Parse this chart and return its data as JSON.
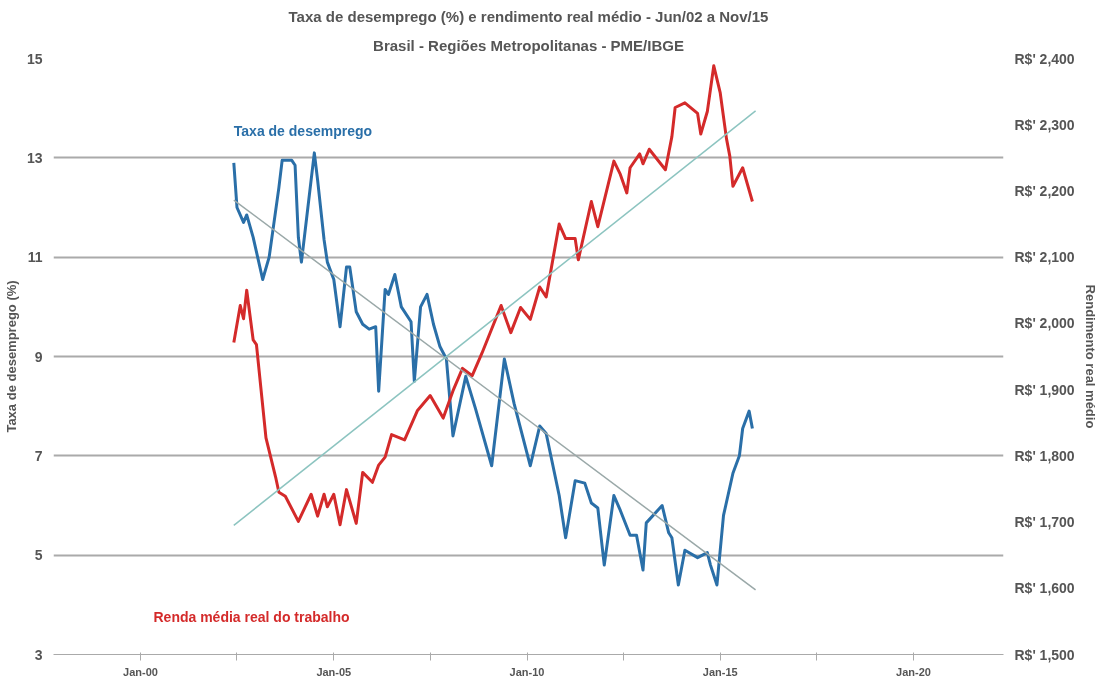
{
  "chart_data": {
    "type": "line",
    "title": "Taxa de desemprego (%) e rendimento real médio - Jun/02 a Nov/15",
    "subtitle": "Brasil - Regiões Metropolitanas - PME/IBGE",
    "ylabel": "Taxa de desemprego (%)",
    "y2label": "Rendimento real médio",
    "xlim": [
      "1997-10",
      "2022-05"
    ],
    "xticks": [
      {
        "value": "2000-01",
        "label": "Jan-00"
      },
      {
        "value": "2002-07",
        "label": null
      },
      {
        "value": "2005-01",
        "label": "Jan-05"
      },
      {
        "value": "2007-07",
        "label": null
      },
      {
        "value": "2010-01",
        "label": "Jan-10"
      },
      {
        "value": "2012-07",
        "label": null
      },
      {
        "value": "2015-01",
        "label": "Jan-15"
      },
      {
        "value": "2017-07",
        "label": null
      },
      {
        "value": "2020-01",
        "label": "Jan-20"
      }
    ],
    "ylim": [
      3,
      15
    ],
    "yticks": [
      3,
      5,
      7,
      9,
      11,
      13,
      15
    ],
    "y2lim": [
      1500,
      2400
    ],
    "y2ticks": [
      {
        "value": 1500,
        "label": "R$' 1,500"
      },
      {
        "value": 1600,
        "label": "R$' 1,600"
      },
      {
        "value": 1700,
        "label": "R$' 1,700"
      },
      {
        "value": 1800,
        "label": "R$' 1,800"
      },
      {
        "value": 1900,
        "label": "R$' 1,900"
      },
      {
        "value": 2000,
        "label": "R$' 2,000"
      },
      {
        "value": 2100,
        "label": "R$' 2,100"
      },
      {
        "value": 2200,
        "label": "R$' 2,200"
      },
      {
        "value": 2300,
        "label": "R$' 2,300"
      },
      {
        "value": 2400,
        "label": "R$' 2,400"
      }
    ],
    "grid": "y",
    "line_style": "solid",
    "series": [
      {
        "name": "Taxa de desemprego",
        "color": "#2a6fa8",
        "x": [
          "2002-06",
          "2002-07",
          "2002-09",
          "2002-10",
          "2002-12",
          "2003-03",
          "2003-05",
          "2003-08",
          "2003-09",
          "2003-12",
          "2004-01",
          "2004-02",
          "2004-03",
          "2004-05",
          "2004-07",
          "2004-08",
          "2004-10",
          "2004-11",
          "2005-01",
          "2005-03",
          "2005-05",
          "2005-06",
          "2005-08",
          "2005-10",
          "2005-12",
          "2006-02",
          "2006-03",
          "2006-05",
          "2006-06",
          "2006-08",
          "2006-10",
          "2007-01",
          "2007-02",
          "2007-04",
          "2007-06",
          "2007-08",
          "2007-10",
          "2007-12",
          "2008-02",
          "2008-06",
          "2008-09",
          "2009-02",
          "2009-06",
          "2009-09",
          "2010-02",
          "2010-05",
          "2010-07",
          "2010-11",
          "2011-01",
          "2011-04",
          "2011-07",
          "2011-09",
          "2011-11",
          "2012-01",
          "2012-04",
          "2012-06",
          "2012-09",
          "2012-11",
          "2013-01",
          "2013-02",
          "2013-07",
          "2013-09",
          "2013-10",
          "2013-12",
          "2014-02",
          "2014-06",
          "2014-09",
          "2014-10",
          "2014-12",
          "2015-02",
          "2015-05",
          "2015-07",
          "2015-08",
          "2015-10",
          "2015-11"
        ],
        "values": [
          12.9,
          12.0,
          11.7,
          11.85,
          11.4,
          10.55,
          11.0,
          12.4,
          12.95,
          12.95,
          12.85,
          11.4,
          10.9,
          12.0,
          13.1,
          12.55,
          11.35,
          10.9,
          10.55,
          9.6,
          10.8,
          10.8,
          9.9,
          9.65,
          9.55,
          9.6,
          8.3,
          10.35,
          10.25,
          10.65,
          10.0,
          9.7,
          8.5,
          10.0,
          10.25,
          9.65,
          9.2,
          8.95,
          7.4,
          8.6,
          7.95,
          6.8,
          8.95,
          8.05,
          6.8,
          7.6,
          7.45,
          6.2,
          5.35,
          6.5,
          6.45,
          6.05,
          5.95,
          4.8,
          6.2,
          5.9,
          5.4,
          5.4,
          4.7,
          5.65,
          6.0,
          5.45,
          5.35,
          4.4,
          5.1,
          4.95,
          5.05,
          4.8,
          4.4,
          5.8,
          6.65,
          7.0,
          7.55,
          7.9,
          7.55
        ]
      },
      {
        "name": "Renda média real do trabalho",
        "color": "#d42a2a",
        "axis": "y2",
        "x": [
          "2002-06",
          "2002-08",
          "2002-09",
          "2002-10",
          "2002-12",
          "2003-01",
          "2003-04",
          "2003-07",
          "2003-08",
          "2003-10",
          "2004-02",
          "2004-06",
          "2004-08",
          "2004-10",
          "2004-11",
          "2005-01",
          "2005-03",
          "2005-05",
          "2005-08",
          "2005-10",
          "2006-01",
          "2006-03",
          "2006-05",
          "2006-07",
          "2006-11",
          "2007-03",
          "2007-07",
          "2007-11",
          "2008-02",
          "2008-05",
          "2008-08",
          "2008-11",
          "2009-05",
          "2009-08",
          "2009-11",
          "2010-02",
          "2010-05",
          "2010-07",
          "2010-11",
          "2011-01",
          "2011-04",
          "2011-05",
          "2011-09",
          "2011-11",
          "2012-04",
          "2012-06",
          "2012-08",
          "2012-09",
          "2012-12",
          "2013-01",
          "2013-03",
          "2013-08",
          "2013-10",
          "2013-11",
          "2014-02",
          "2014-06",
          "2014-07",
          "2014-09",
          "2014-11",
          "2015-01",
          "2015-03",
          "2015-04",
          "2015-05",
          "2015-08",
          "2015-11"
        ],
        "values": [
          1971,
          2027,
          2007,
          2050,
          1975,
          1968,
          1827,
          1768,
          1745,
          1739,
          1701,
          1742,
          1709,
          1742,
          1723,
          1742,
          1696,
          1749,
          1698,
          1775,
          1760,
          1786,
          1798,
          1832,
          1824,
          1868,
          1891,
          1857,
          1898,
          1932,
          1921,
          1955,
          2027,
          1986,
          2024,
          2006,
          2055,
          2040,
          2150,
          2128,
          2128,
          2096,
          2184,
          2146,
          2245,
          2225,
          2197,
          2235,
          2256,
          2241,
          2263,
          2232,
          2282,
          2326,
          2333,
          2317,
          2286,
          2320,
          2389,
          2348,
          2279,
          2253,
          2207,
          2235,
          2184
        ]
      },
      {
        "color": "#9aa8a8",
        "x": [
          "2002-06",
          "2015-12"
        ],
        "values": [
          12.15,
          4.3
        ]
      },
      {
        "color": "#8cc4c0",
        "axis": "y2",
        "x": [
          "2002-06",
          "2015-12"
        ],
        "values": [
          1695,
          2321
        ]
      }
    ]
  }
}
